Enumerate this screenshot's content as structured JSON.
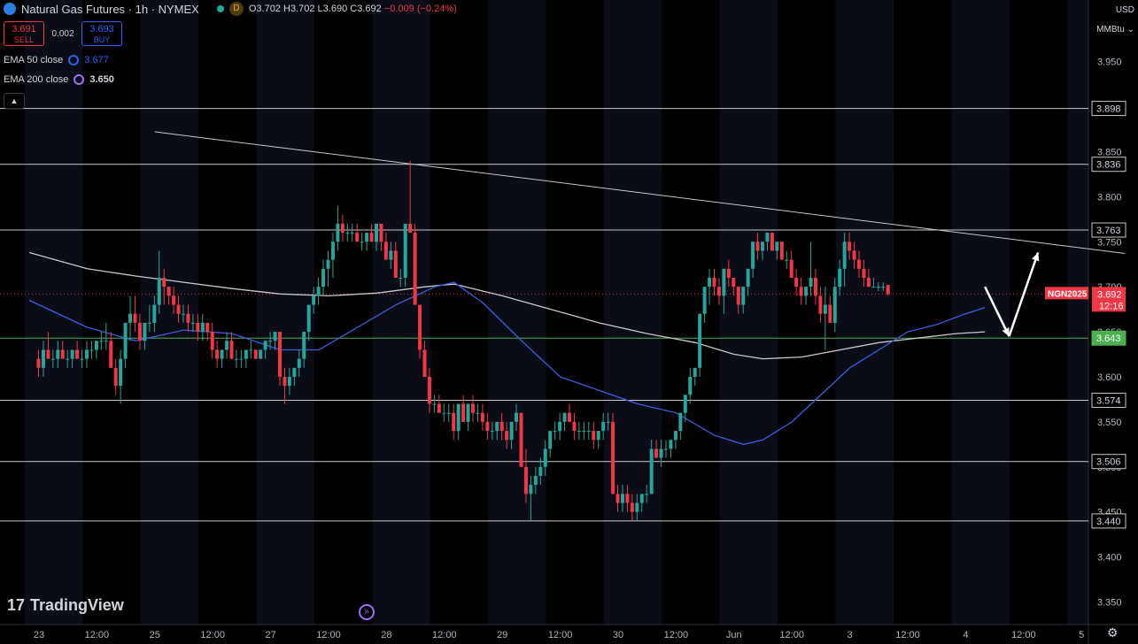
{
  "header": {
    "title": "Natural Gas Futures · 1h · NYMEX",
    "market_badge": "D",
    "open": "O3.702",
    "high": "H3.702",
    "low": "L3.690",
    "close": "C3.692",
    "change": "−0.009 (−0.24%)"
  },
  "trade": {
    "sell_price": "3.691",
    "sell_label": "SELL",
    "spread": "0.002",
    "buy_price": "3.693",
    "buy_label": "BUY"
  },
  "indicators": [
    {
      "label": "EMA 50 close",
      "value": "3.677",
      "color": "#2962ff"
    },
    {
      "label": "EMA 200 close",
      "value": "3.650",
      "color": "#9c6ef8"
    }
  ],
  "axis": {
    "currency": "USD",
    "unit": "MMBtu"
  },
  "branding": {
    "name": "TradingView"
  },
  "colors": {
    "up": "#26a69a",
    "down": "#f23645",
    "ema50": "#3a5ee0",
    "ema200": "#c8c8c8",
    "support": "#4caf50"
  },
  "chart_data": {
    "type": "candlestick",
    "ylim": [
      3.325,
      3.985
    ],
    "y_ticks": [
      3.35,
      3.4,
      3.45,
      3.5,
      3.55,
      3.6,
      3.65,
      3.7,
      3.75,
      3.8,
      3.85,
      3.9,
      3.95
    ],
    "x_ticks": [
      {
        "label": "23",
        "t": 0
      },
      {
        "label": "12:00",
        "t": 12
      },
      {
        "label": "25",
        "t": 24
      },
      {
        "label": "12:00",
        "t": 36
      },
      {
        "label": "27",
        "t": 48
      },
      {
        "label": "12:00",
        "t": 60
      },
      {
        "label": "28",
        "t": 72
      },
      {
        "label": "12:00",
        "t": 84
      },
      {
        "label": "29",
        "t": 96
      },
      {
        "label": "12:00",
        "t": 108
      },
      {
        "label": "30",
        "t": 120
      },
      {
        "label": "12:00",
        "t": 132
      },
      {
        "label": "Jun",
        "t": 144
      },
      {
        "label": "12:00",
        "t": 156
      },
      {
        "label": "3",
        "t": 168
      },
      {
        "label": "12:00",
        "t": 180
      },
      {
        "label": "4",
        "t": 192
      },
      {
        "label": "12:00",
        "t": 204
      },
      {
        "label": "5",
        "t": 216
      }
    ],
    "levels": [
      {
        "value": 3.898,
        "label": "3.898",
        "color": "#c8c8c8"
      },
      {
        "value": 3.836,
        "label": "3.836",
        "color": "#c8c8c8"
      },
      {
        "value": 3.763,
        "label": "3.763",
        "color": "#c8c8c8"
      },
      {
        "value": 3.643,
        "label": "3.643",
        "color": "#4caf50"
      },
      {
        "value": 3.574,
        "label": "3.574",
        "color": "#c8c8c8"
      },
      {
        "value": 3.506,
        "label": "3.506",
        "color": "#c8c8c8"
      },
      {
        "value": 3.44,
        "label": "3.440",
        "color": "#c8c8c8"
      }
    ],
    "current_price": {
      "value": 3.692,
      "symbol": "NGN2025",
      "countdown": "12:16"
    },
    "trendline": [
      {
        "t": 24,
        "v": 3.872
      },
      {
        "t": 225,
        "v": 3.737
      }
    ],
    "arrows": [
      {
        "from": {
          "t": 196,
          "v": 3.7
        },
        "to": {
          "t": 201,
          "v": 3.645
        }
      },
      {
        "from": {
          "t": 201,
          "v": 3.645
        },
        "to": {
          "t": 207,
          "v": 3.738
        }
      }
    ],
    "ema50": [
      [
        -2,
        3.685
      ],
      [
        10,
        3.655
      ],
      [
        20,
        3.64
      ],
      [
        30,
        3.652
      ],
      [
        40,
        3.648
      ],
      [
        50,
        3.63
      ],
      [
        58,
        3.63
      ],
      [
        66,
        3.655
      ],
      [
        74,
        3.68
      ],
      [
        82,
        3.7
      ],
      [
        86,
        3.705
      ],
      [
        92,
        3.682
      ],
      [
        100,
        3.64
      ],
      [
        108,
        3.6
      ],
      [
        116,
        3.585
      ],
      [
        124,
        3.57
      ],
      [
        132,
        3.56
      ],
      [
        140,
        3.535
      ],
      [
        146,
        3.525
      ],
      [
        150,
        3.53
      ],
      [
        156,
        3.55
      ],
      [
        162,
        3.58
      ],
      [
        168,
        3.61
      ],
      [
        174,
        3.63
      ],
      [
        180,
        3.65
      ],
      [
        186,
        3.658
      ],
      [
        192,
        3.67
      ],
      [
        196,
        3.677
      ]
    ],
    "ema200": [
      [
        -2,
        3.738
      ],
      [
        10,
        3.72
      ],
      [
        20,
        3.712
      ],
      [
        30,
        3.705
      ],
      [
        40,
        3.698
      ],
      [
        50,
        3.692
      ],
      [
        60,
        3.69
      ],
      [
        70,
        3.693
      ],
      [
        80,
        3.7
      ],
      [
        86,
        3.703
      ],
      [
        96,
        3.69
      ],
      [
        106,
        3.675
      ],
      [
        116,
        3.66
      ],
      [
        126,
        3.648
      ],
      [
        136,
        3.638
      ],
      [
        144,
        3.625
      ],
      [
        150,
        3.62
      ],
      [
        158,
        3.622
      ],
      [
        166,
        3.63
      ],
      [
        174,
        3.638
      ],
      [
        182,
        3.643
      ],
      [
        190,
        3.648
      ],
      [
        196,
        3.65
      ]
    ],
    "candles": [
      [
        3.62,
        3.63,
        3.6,
        3.61
      ],
      [
        3.61,
        3.64,
        3.6,
        3.63
      ],
      [
        3.63,
        3.65,
        3.62,
        3.62
      ],
      [
        3.62,
        3.63,
        3.61,
        3.62
      ],
      [
        3.62,
        3.64,
        3.61,
        3.63
      ],
      [
        3.63,
        3.64,
        3.62,
        3.62
      ],
      [
        3.62,
        3.63,
        3.61,
        3.62
      ],
      [
        3.62,
        3.63,
        3.61,
        3.63
      ],
      [
        3.63,
        3.64,
        3.62,
        3.62
      ],
      [
        3.62,
        3.63,
        3.61,
        3.62
      ],
      [
        3.62,
        3.64,
        3.61,
        3.63
      ],
      [
        3.63,
        3.64,
        3.62,
        3.63
      ],
      [
        3.63,
        3.64,
        3.62,
        3.64
      ],
      [
        3.64,
        3.65,
        3.63,
        3.64
      ],
      [
        3.64,
        3.66,
        3.63,
        3.64
      ],
      [
        3.64,
        3.65,
        3.61,
        3.61
      ],
      [
        3.61,
        3.62,
        3.58,
        3.59
      ],
      [
        3.59,
        3.63,
        3.57,
        3.62
      ],
      [
        3.62,
        3.66,
        3.61,
        3.66
      ],
      [
        3.66,
        3.69,
        3.64,
        3.67
      ],
      [
        3.67,
        3.69,
        3.65,
        3.66
      ],
      [
        3.66,
        3.67,
        3.63,
        3.64
      ],
      [
        3.64,
        3.66,
        3.63,
        3.66
      ],
      [
        3.66,
        3.68,
        3.65,
        3.66
      ],
      [
        3.66,
        3.69,
        3.65,
        3.68
      ],
      [
        3.68,
        3.74,
        3.67,
        3.71
      ],
      [
        3.71,
        3.72,
        3.68,
        3.7
      ],
      [
        3.7,
        3.7,
        3.68,
        3.69
      ],
      [
        3.69,
        3.7,
        3.67,
        3.68
      ],
      [
        3.68,
        3.69,
        3.66,
        3.67
      ],
      [
        3.67,
        3.68,
        3.66,
        3.67
      ],
      [
        3.67,
        3.68,
        3.65,
        3.66
      ],
      [
        3.66,
        3.67,
        3.65,
        3.66
      ],
      [
        3.66,
        3.67,
        3.64,
        3.65
      ],
      [
        3.65,
        3.67,
        3.64,
        3.66
      ],
      [
        3.66,
        3.66,
        3.64,
        3.65
      ],
      [
        3.65,
        3.66,
        3.62,
        3.63
      ],
      [
        3.63,
        3.64,
        3.61,
        3.62
      ],
      [
        3.62,
        3.63,
        3.61,
        3.63
      ],
      [
        3.63,
        3.65,
        3.62,
        3.64
      ],
      [
        3.64,
        3.65,
        3.62,
        3.62
      ],
      [
        3.62,
        3.63,
        3.61,
        3.62
      ],
      [
        3.62,
        3.63,
        3.61,
        3.62
      ],
      [
        3.62,
        3.63,
        3.61,
        3.63
      ],
      [
        3.63,
        3.64,
        3.62,
        3.63
      ],
      [
        3.63,
        3.63,
        3.62,
        3.62
      ],
      [
        3.62,
        3.63,
        3.62,
        3.63
      ],
      [
        3.63,
        3.64,
        3.62,
        3.64
      ],
      [
        3.64,
        3.65,
        3.63,
        3.64
      ],
      [
        3.64,
        3.65,
        3.63,
        3.65
      ],
      [
        3.65,
        3.65,
        3.59,
        3.6
      ],
      [
        3.6,
        3.61,
        3.57,
        3.59
      ],
      [
        3.59,
        3.61,
        3.58,
        3.6
      ],
      [
        3.6,
        3.61,
        3.59,
        3.61
      ],
      [
        3.61,
        3.63,
        3.6,
        3.62
      ],
      [
        3.62,
        3.65,
        3.61,
        3.65
      ],
      [
        3.65,
        3.68,
        3.64,
        3.68
      ],
      [
        3.68,
        3.7,
        3.67,
        3.69
      ],
      [
        3.69,
        3.71,
        3.68,
        3.7
      ],
      [
        3.7,
        3.73,
        3.69,
        3.72
      ],
      [
        3.72,
        3.74,
        3.7,
        3.73
      ],
      [
        3.73,
        3.76,
        3.71,
        3.75
      ],
      [
        3.75,
        3.79,
        3.74,
        3.77
      ],
      [
        3.77,
        3.78,
        3.75,
        3.76
      ],
      [
        3.76,
        3.77,
        3.75,
        3.76
      ],
      [
        3.76,
        3.77,
        3.75,
        3.76
      ],
      [
        3.76,
        3.77,
        3.75,
        3.75
      ],
      [
        3.75,
        3.76,
        3.74,
        3.75
      ],
      [
        3.75,
        3.76,
        3.74,
        3.76
      ],
      [
        3.76,
        3.77,
        3.75,
        3.75
      ],
      [
        3.75,
        3.77,
        3.74,
        3.77
      ],
      [
        3.77,
        3.77,
        3.74,
        3.75
      ],
      [
        3.75,
        3.76,
        3.73,
        3.73
      ],
      [
        3.73,
        3.75,
        3.72,
        3.74
      ],
      [
        3.74,
        3.75,
        3.71,
        3.71
      ],
      [
        3.71,
        3.72,
        3.7,
        3.71
      ],
      [
        3.71,
        3.77,
        3.7,
        3.77
      ],
      [
        3.77,
        3.84,
        3.76,
        3.76
      ],
      [
        3.76,
        3.77,
        3.68,
        3.68
      ],
      [
        3.68,
        3.68,
        3.62,
        3.63
      ],
      [
        3.63,
        3.64,
        3.6,
        3.6
      ],
      [
        3.6,
        3.61,
        3.56,
        3.57
      ],
      [
        3.57,
        3.58,
        3.56,
        3.57
      ],
      [
        3.57,
        3.58,
        3.56,
        3.56
      ],
      [
        3.56,
        3.57,
        3.55,
        3.56
      ],
      [
        3.56,
        3.57,
        3.55,
        3.56
      ],
      [
        3.56,
        3.57,
        3.53,
        3.54
      ],
      [
        3.54,
        3.57,
        3.53,
        3.57
      ],
      [
        3.57,
        3.58,
        3.55,
        3.55
      ],
      [
        3.55,
        3.57,
        3.54,
        3.57
      ],
      [
        3.57,
        3.58,
        3.55,
        3.56
      ],
      [
        3.56,
        3.57,
        3.55,
        3.56
      ],
      [
        3.56,
        3.57,
        3.54,
        3.55
      ],
      [
        3.55,
        3.56,
        3.53,
        3.54
      ],
      [
        3.54,
        3.55,
        3.53,
        3.54
      ],
      [
        3.54,
        3.55,
        3.53,
        3.55
      ],
      [
        3.55,
        3.56,
        3.53,
        3.54
      ],
      [
        3.54,
        3.55,
        3.52,
        3.53
      ],
      [
        3.53,
        3.55,
        3.52,
        3.55
      ],
      [
        3.55,
        3.57,
        3.54,
        3.56
      ],
      [
        3.56,
        3.56,
        3.5,
        3.5
      ],
      [
        3.5,
        3.52,
        3.46,
        3.47
      ],
      [
        3.47,
        3.49,
        3.44,
        3.48
      ],
      [
        3.48,
        3.5,
        3.47,
        3.49
      ],
      [
        3.49,
        3.51,
        3.48,
        3.5
      ],
      [
        3.5,
        3.53,
        3.49,
        3.52
      ],
      [
        3.52,
        3.54,
        3.51,
        3.54
      ],
      [
        3.54,
        3.55,
        3.53,
        3.54
      ],
      [
        3.54,
        3.56,
        3.53,
        3.55
      ],
      [
        3.55,
        3.56,
        3.54,
        3.56
      ],
      [
        3.56,
        3.57,
        3.55,
        3.55
      ],
      [
        3.55,
        3.56,
        3.53,
        3.54
      ],
      [
        3.54,
        3.55,
        3.53,
        3.54
      ],
      [
        3.54,
        3.55,
        3.53,
        3.54
      ],
      [
        3.54,
        3.55,
        3.53,
        3.54
      ],
      [
        3.54,
        3.55,
        3.52,
        3.53
      ],
      [
        3.53,
        3.54,
        3.52,
        3.54
      ],
      [
        3.54,
        3.56,
        3.53,
        3.55
      ],
      [
        3.55,
        3.56,
        3.54,
        3.55
      ],
      [
        3.55,
        3.56,
        3.47,
        3.47
      ],
      [
        3.47,
        3.48,
        3.45,
        3.46
      ],
      [
        3.46,
        3.48,
        3.45,
        3.47
      ],
      [
        3.47,
        3.48,
        3.45,
        3.46
      ],
      [
        3.46,
        3.47,
        3.44,
        3.45
      ],
      [
        3.45,
        3.47,
        3.44,
        3.46
      ],
      [
        3.46,
        3.47,
        3.45,
        3.47
      ],
      [
        3.47,
        3.48,
        3.46,
        3.47
      ],
      [
        3.47,
        3.53,
        3.47,
        3.52
      ],
      [
        3.52,
        3.53,
        3.51,
        3.51
      ],
      [
        3.51,
        3.53,
        3.5,
        3.52
      ],
      [
        3.52,
        3.53,
        3.51,
        3.52
      ],
      [
        3.52,
        3.53,
        3.51,
        3.53
      ],
      [
        3.53,
        3.54,
        3.52,
        3.54
      ],
      [
        3.54,
        3.56,
        3.53,
        3.56
      ],
      [
        3.56,
        3.58,
        3.55,
        3.58
      ],
      [
        3.58,
        3.61,
        3.57,
        3.6
      ],
      [
        3.6,
        3.61,
        3.59,
        3.61
      ],
      [
        3.61,
        3.67,
        3.6,
        3.67
      ],
      [
        3.67,
        3.7,
        3.66,
        3.7
      ],
      [
        3.7,
        3.72,
        3.68,
        3.71
      ],
      [
        3.71,
        3.72,
        3.69,
        3.7
      ],
      [
        3.7,
        3.71,
        3.68,
        3.69
      ],
      [
        3.69,
        3.72,
        3.67,
        3.72
      ],
      [
        3.72,
        3.73,
        3.7,
        3.71
      ],
      [
        3.71,
        3.71,
        3.69,
        3.7
      ],
      [
        3.7,
        3.7,
        3.67,
        3.68
      ],
      [
        3.68,
        3.7,
        3.67,
        3.7
      ],
      [
        3.7,
        3.72,
        3.69,
        3.72
      ],
      [
        3.72,
        3.75,
        3.71,
        3.75
      ],
      [
        3.75,
        3.76,
        3.73,
        3.74
      ],
      [
        3.74,
        3.75,
        3.73,
        3.75
      ],
      [
        3.75,
        3.76,
        3.74,
        3.76
      ],
      [
        3.76,
        3.76,
        3.74,
        3.74
      ],
      [
        3.74,
        3.75,
        3.73,
        3.75
      ],
      [
        3.75,
        3.75,
        3.73,
        3.73
      ],
      [
        3.73,
        3.74,
        3.72,
        3.73
      ],
      [
        3.73,
        3.74,
        3.71,
        3.71
      ],
      [
        3.71,
        3.72,
        3.69,
        3.7
      ],
      [
        3.7,
        3.71,
        3.68,
        3.69
      ],
      [
        3.69,
        3.7,
        3.68,
        3.7
      ],
      [
        3.7,
        3.75,
        3.69,
        3.71
      ],
      [
        3.71,
        3.72,
        3.68,
        3.69
      ],
      [
        3.69,
        3.7,
        3.66,
        3.67
      ],
      [
        3.67,
        3.7,
        3.63,
        3.68
      ],
      [
        3.68,
        3.69,
        3.66,
        3.66
      ],
      [
        3.66,
        3.71,
        3.65,
        3.7
      ],
      [
        3.7,
        3.73,
        3.69,
        3.72
      ],
      [
        3.72,
        3.76,
        3.7,
        3.75
      ],
      [
        3.75,
        3.76,
        3.73,
        3.74
      ],
      [
        3.74,
        3.75,
        3.72,
        3.73
      ],
      [
        3.73,
        3.74,
        3.71,
        3.72
      ],
      [
        3.72,
        3.73,
        3.7,
        3.71
      ],
      [
        3.71,
        3.72,
        3.7,
        3.7
      ],
      [
        3.7,
        3.71,
        3.7,
        3.7
      ],
      [
        3.7,
        3.705,
        3.695,
        3.7
      ],
      [
        3.7,
        3.705,
        3.695,
        3.7
      ],
      [
        3.702,
        3.702,
        3.69,
        3.692
      ]
    ]
  }
}
